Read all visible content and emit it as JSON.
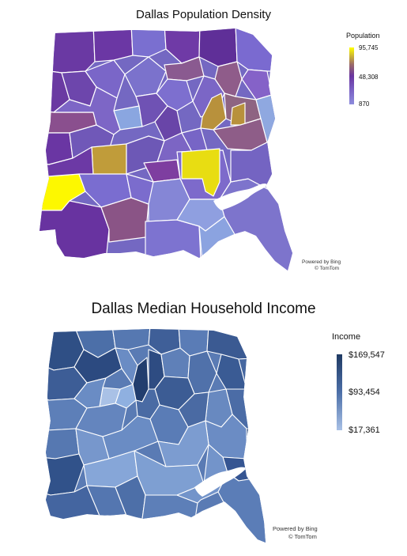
{
  "population_map": {
    "title": "Dallas Population Density",
    "legend": {
      "title": "Population",
      "max_label": "95,745",
      "mid_label": "48,308",
      "min_label": "870",
      "colors": [
        "#ffff00",
        "#6a35a0",
        "#8c8cdc"
      ]
    },
    "attribution": {
      "line1": "Powered by Bing",
      "line2": "© TomTom"
    }
  },
  "income_map": {
    "title": "Dallas Median Household Income",
    "legend": {
      "title": "Income",
      "max_label": "$169,547",
      "mid_label": "$93,454",
      "min_label": "$17,361",
      "colors": [
        "#1f3a63",
        "#4c6fa8",
        "#a9c1e6"
      ]
    },
    "attribution": {
      "line1": "Powered by Bing",
      "line2": "© TomTom"
    }
  }
}
